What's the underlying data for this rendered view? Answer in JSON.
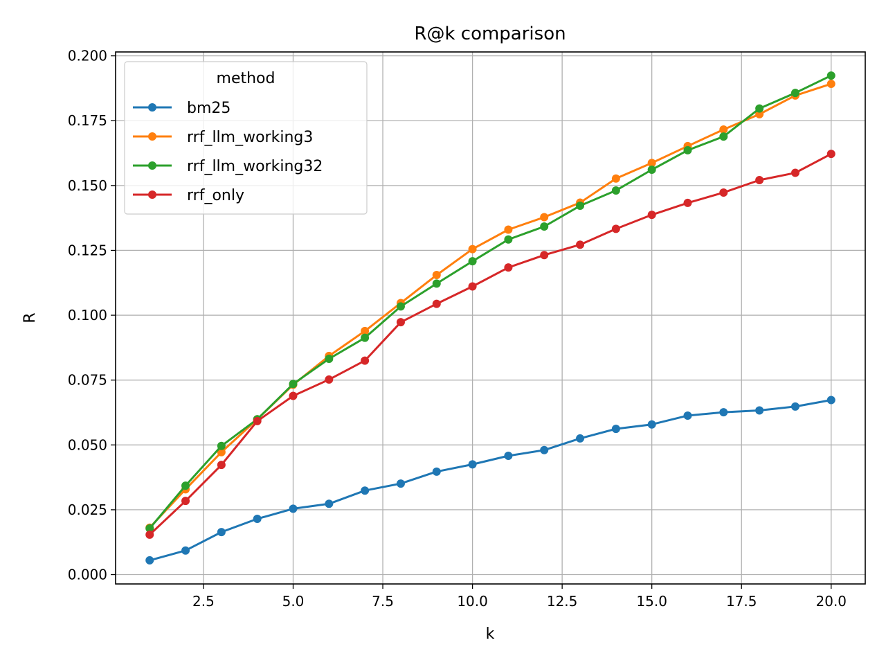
{
  "chart_data": {
    "type": "line",
    "title": "R@k comparison",
    "xlabel": "k",
    "ylabel": "R",
    "xlim": [
      0.05,
      20.95
    ],
    "ylim": [
      -0.0036,
      0.2015
    ],
    "x_ticks": [
      2.5,
      5.0,
      7.5,
      10.0,
      12.5,
      15.0,
      17.5,
      20.0
    ],
    "x_tick_labels": [
      "2.5",
      "5.0",
      "7.5",
      "10.0",
      "12.5",
      "15.0",
      "17.5",
      "20.0"
    ],
    "y_ticks": [
      0.0,
      0.025,
      0.05,
      0.075,
      0.1,
      0.125,
      0.15,
      0.175,
      0.2
    ],
    "y_tick_labels": [
      "0.000",
      "0.025",
      "0.050",
      "0.075",
      "0.100",
      "0.125",
      "0.150",
      "0.175",
      "0.200"
    ],
    "grid": true,
    "legend": {
      "title": "method",
      "placement": "top-left"
    },
    "x": [
      1,
      2,
      3,
      4,
      5,
      6,
      7,
      8,
      9,
      10,
      11,
      12,
      13,
      14,
      15,
      16,
      17,
      18,
      19,
      20
    ],
    "series": [
      {
        "name": "bm25",
        "color": "#1f77b4",
        "values": [
          0.0055,
          0.0093,
          0.0164,
          0.0215,
          0.0254,
          0.0273,
          0.0324,
          0.0351,
          0.0397,
          0.0425,
          0.0458,
          0.048,
          0.0525,
          0.0562,
          0.0579,
          0.0613,
          0.0626,
          0.0633,
          0.0648,
          0.0673
        ]
      },
      {
        "name": "rrf_llm_working3",
        "color": "#ff7f0e",
        "values": [
          0.0181,
          0.0329,
          0.0472,
          0.0599,
          0.0732,
          0.0843,
          0.0939,
          0.1047,
          0.1155,
          0.1255,
          0.133,
          0.1378,
          0.1434,
          0.1527,
          0.1587,
          0.1652,
          0.1716,
          0.1775,
          0.1847,
          0.1892
        ]
      },
      {
        "name": "rrf_llm_working32",
        "color": "#2ca02c",
        "values": [
          0.0178,
          0.0343,
          0.0496,
          0.0599,
          0.0735,
          0.0832,
          0.0913,
          0.1034,
          0.1122,
          0.1208,
          0.1292,
          0.1342,
          0.1422,
          0.1481,
          0.1561,
          0.1636,
          0.1689,
          0.1797,
          0.1857,
          0.1924
        ]
      },
      {
        "name": "rrf_only",
        "color": "#d62728",
        "values": [
          0.0154,
          0.0284,
          0.0423,
          0.0592,
          0.0689,
          0.0752,
          0.0825,
          0.0973,
          0.1044,
          0.1111,
          0.1184,
          0.1232,
          0.1272,
          0.1333,
          0.1387,
          0.1433,
          0.1473,
          0.1521,
          0.1549,
          0.1622
        ]
      }
    ]
  }
}
